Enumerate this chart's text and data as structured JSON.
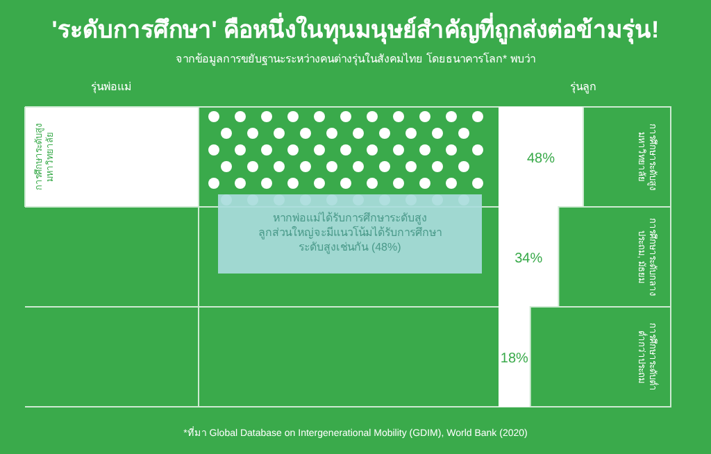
{
  "chart_data": {
    "type": "bar",
    "orientation": "horizontal",
    "title": "'ระดับการศึกษา' คือหนึ่งในทุนมนุษย์สำคัญที่ถูกส่งต่อข้ามรุ่น!",
    "subtitle": "จากข้อมูลการขยับฐานะระหว่างคนต่างรุ่นในสังคมไทย โดยธนาคารโลก* พบว่า",
    "categories": [
      "การศึกษาระดับสูง\nมหาวิทยาลัย",
      "การศึกษาระดับกลาง\nประถม, มัธยม",
      "การศึกษาระดับต่ำ\nต่ำกว่าประถม"
    ],
    "values": [
      48,
      34,
      18
    ],
    "value_labels": [
      "48%",
      "34%",
      "18%"
    ],
    "color": "#ffffff",
    "annotations": [
      {
        "text": "การศึกษาระดับสูง\nมหาวิทยาลัย"
      },
      {
        "text": "หากพ่อแม่ได้รับการศึกษาระดับสูง\nลูกส่วนใหญ่จะมีแนวโน้มได้รับการศึกษา\nระดับสูงเช่นกัน (48%)"
      },
      {
        "text": "*ที่มา Global Database on Intergenerational Mobility (GDIM), World Bank (2020)"
      },
      {
        "text": "รุ่นพ่อแม่"
      },
      {
        "text": "รุ่นลูก"
      }
    ]
  }
}
